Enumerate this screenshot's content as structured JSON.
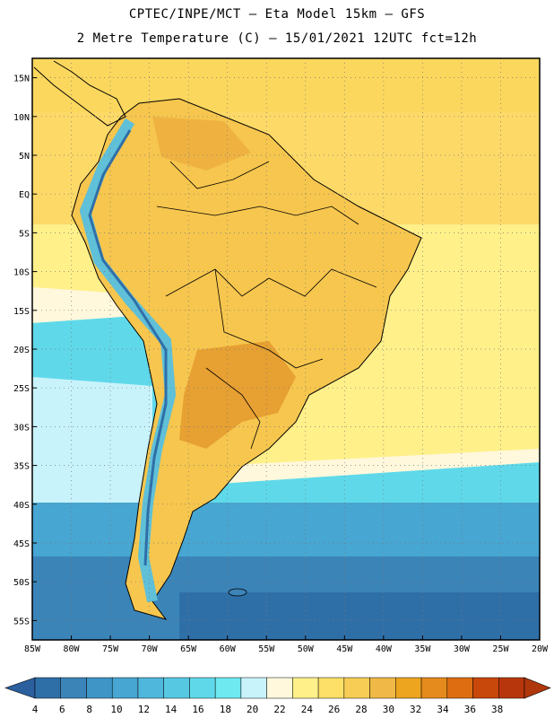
{
  "header": {
    "line1": "CPTEC/INPE/MCT –  Eta Model 15km – GFS",
    "line2": "2 Metre Temperature (C) – 15/01/2021 12UTC fct=12h"
  },
  "axes": {
    "lat_ticks": [
      "15N",
      "10N",
      "5N",
      "EQ",
      "5S",
      "10S",
      "15S",
      "20S",
      "25S",
      "30S",
      "35S",
      "40S",
      "45S",
      "50S",
      "55S"
    ],
    "lon_ticks": [
      "85W",
      "80W",
      "75W",
      "70W",
      "65W",
      "60W",
      "55W",
      "50W",
      "45W",
      "40W",
      "35W",
      "30W",
      "25W",
      "20W"
    ],
    "lat_range": [
      17.5,
      -57.5
    ],
    "lon_range": [
      -85,
      -20
    ]
  },
  "colorbar": {
    "labels": [
      "4",
      "6",
      "8",
      "10",
      "12",
      "14",
      "16",
      "18",
      "20",
      "22",
      "24",
      "26",
      "28",
      "30",
      "32",
      "34",
      "36",
      "38"
    ],
    "colors": [
      "#2f6fa8",
      "#3b84b8",
      "#3f95c6",
      "#47a6d2",
      "#4fb7dc",
      "#57c8e2",
      "#5fd9ea",
      "#6ee9f0",
      "#c8f3fb",
      "#fff8dc",
      "#fff08a",
      "#fde067",
      "#f7cd55",
      "#f0b846",
      "#eda520",
      "#e58a1c",
      "#de6c10",
      "#c8470a",
      "#b8360c"
    ],
    "min_color": "#2b5f9e",
    "max_color": "#b0370c"
  },
  "map_colors": {
    "ocean_south_deep": "#2f6fa8",
    "ocean_south_mid": "#46a6d2",
    "ocean_south_light": "#67d9ea",
    "ocean_cool": "#c8f3fb",
    "ocean_temperate": "#fff8dc",
    "ocean_warm": "#fff08a",
    "ocean_tropical": "#fbd75e",
    "land_main": "#f6c64e",
    "land_hot": "#e7a032",
    "andes": "#5fc0d8"
  }
}
